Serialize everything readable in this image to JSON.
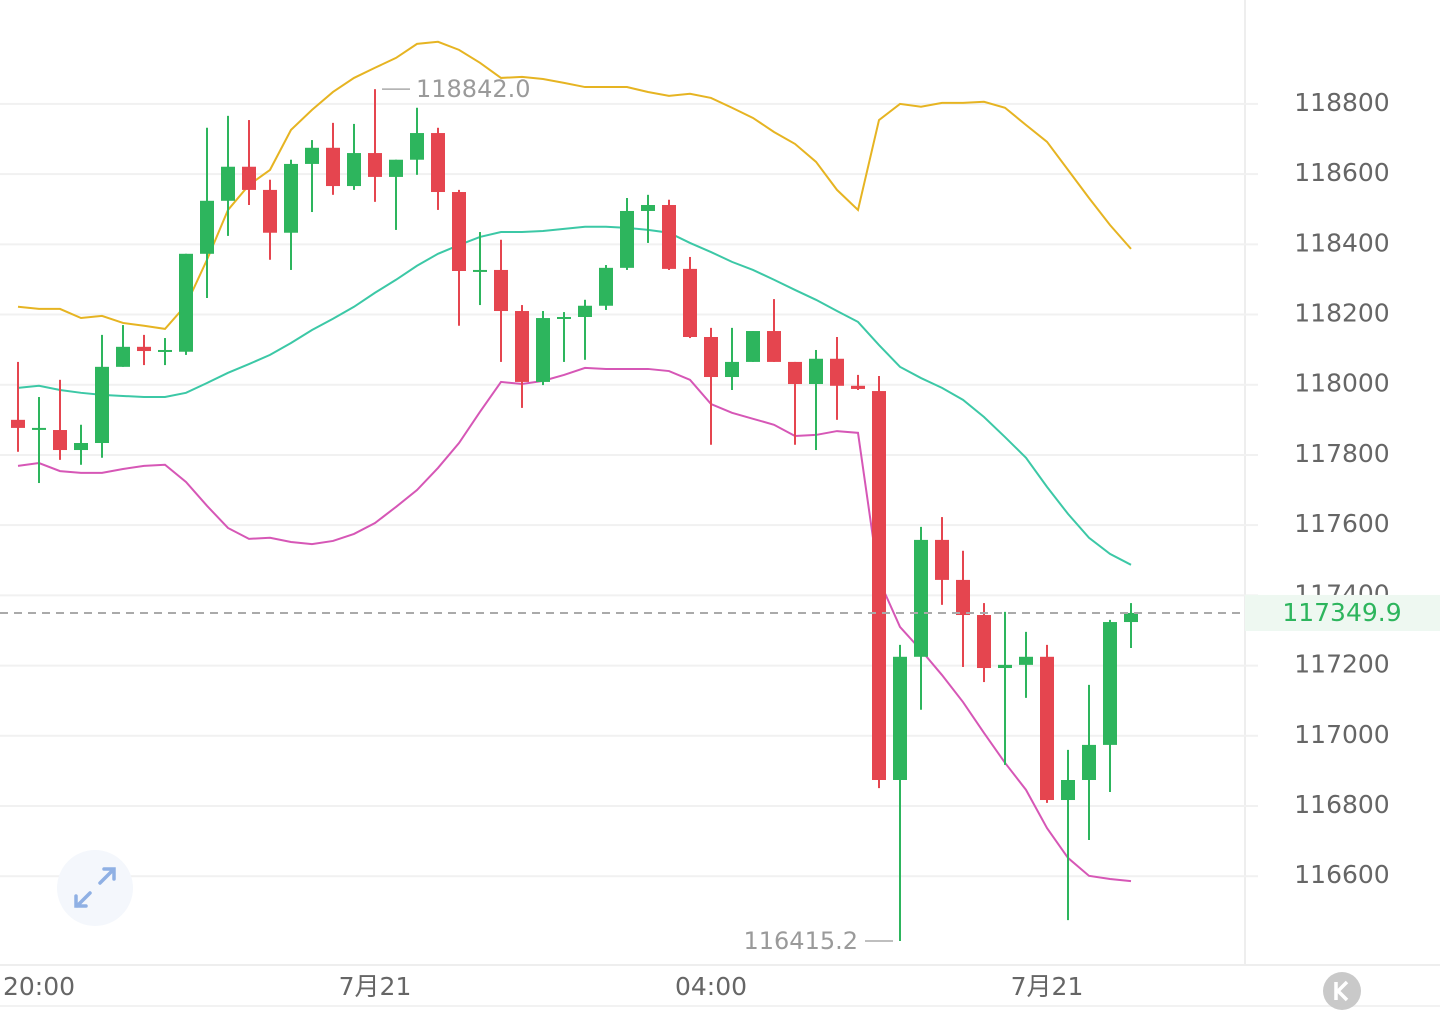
{
  "chart_data": {
    "type": "candlestick",
    "categories": [
      null,
      "20:00",
      null,
      null,
      null,
      null,
      null,
      null,
      null,
      null,
      null,
      null,
      null,
      null,
      null,
      null,
      null,
      "7月21",
      null,
      null,
      null,
      null,
      null,
      null,
      null,
      null,
      null,
      null,
      null,
      null,
      null,
      null,
      null,
      "04:00",
      null,
      null,
      null,
      null,
      null,
      null,
      null,
      null,
      null,
      null,
      null,
      null,
      null,
      null,
      null,
      "7月21",
      null,
      null,
      null,
      null
    ],
    "open": [
      117900,
      117877,
      117871,
      117814,
      117834,
      118051,
      118108,
      118099,
      118094,
      118373,
      118524,
      118621,
      118555,
      118433,
      118629,
      118675,
      118566,
      118660,
      118592,
      118641,
      118717,
      118549,
      118327,
      118327,
      118210,
      118008,
      118193,
      118193,
      118225,
      118333,
      118495,
      118512,
      118330,
      118136,
      118022,
      118065,
      118153,
      118065,
      118002,
      118074,
      117997,
      117982,
      116874,
      117225,
      117558,
      117444,
      117344,
      117193,
      117202,
      117225,
      116817,
      116874,
      116974,
      117324
    ],
    "high": [
      118065,
      117965,
      118014,
      117886,
      118142,
      118170,
      118142,
      118133,
      118373,
      118732,
      118766,
      118754,
      118584,
      118641,
      118697,
      118746,
      118743,
      118842.0,
      118641,
      118789,
      118732,
      118555,
      118435,
      118413,
      118227,
      118210,
      118207,
      118242,
      118341,
      118532,
      118541,
      118527,
      118364,
      118162,
      118162,
      118153,
      118244,
      118065,
      118099,
      118136,
      118028,
      118025,
      117259,
      117595,
      117623,
      117527,
      117378,
      117353,
      117296,
      117259,
      116960,
      117145,
      117330,
      117378
    ],
    "low": [
      117809,
      117720,
      117786,
      117772,
      117792,
      118051,
      118056,
      118056,
      118085,
      118247,
      118424,
      118512,
      118356,
      118327,
      118492,
      118541,
      118555,
      118521,
      118441,
      118598,
      118498,
      118168,
      118227,
      118065,
      117934,
      117999,
      118065,
      118071,
      118213,
      118327,
      118404,
      118327,
      118133,
      117829,
      117985,
      118065,
      118065,
      117829,
      117814,
      117900,
      117985,
      116851,
      116415.2,
      117074,
      117373,
      117196,
      117153,
      116917,
      117108,
      116809,
      116475,
      116703,
      116840,
      117250
    ],
    "close": [
      117877,
      117877,
      117814,
      117834,
      118051,
      118108,
      118096,
      118099,
      118373,
      118524,
      118621,
      118555,
      118433,
      118629,
      118675,
      118566,
      118660,
      118592,
      118641,
      118717,
      118549,
      118324,
      118327,
      118210,
      118008,
      118190,
      118193,
      118225,
      118333,
      118495,
      118512,
      118330,
      118136,
      118022,
      118065,
      118153,
      118065,
      118002,
      118074,
      117997,
      117988,
      116874,
      117225,
      117558,
      117444,
      117344,
      117193,
      117202,
      117225,
      116817,
      116874,
      116974,
      117324,
      117349.9
    ],
    "up_color": "#2db55d",
    "down_color": "#e5454f",
    "lines": [
      {
        "color": "#e6b422",
        "values": [
          118222,
          118216,
          118216,
          118190,
          118196,
          118176,
          118168,
          118159,
          118227,
          118356,
          118498,
          118569,
          118612,
          118726,
          118783,
          118834,
          118874,
          118903,
          118931,
          118971,
          118977,
          118954,
          118917,
          118874,
          118877,
          118871,
          118860,
          118848,
          118848,
          118848,
          118834,
          118823,
          118829,
          118817,
          118789,
          118760,
          118720,
          118686,
          118635,
          118555,
          118498,
          118754,
          118800,
          118792,
          118803,
          118803,
          118806,
          118789,
          118740,
          118692,
          118612,
          118532,
          118455,
          118387
        ]
      },
      {
        "color": "#3cc8a6",
        "values": [
          117991,
          117997,
          117985,
          117977,
          117971,
          117968,
          117965,
          117965,
          117977,
          118005,
          118034,
          118059,
          118085,
          118119,
          118156,
          118188,
          118222,
          118262,
          118299,
          118339,
          118373,
          118398,
          118421,
          118435,
          118435,
          118438,
          118444,
          118450,
          118450,
          118447,
          118441,
          118433,
          118404,
          118378,
          118350,
          118327,
          118299,
          118270,
          118242,
          118210,
          118179,
          118113,
          118051,
          118019,
          117991,
          117957,
          117908,
          117851,
          117792,
          117709,
          117632,
          117564,
          117518,
          117487
        ]
      },
      {
        "color": "#d657b6",
        "values": [
          117769,
          117777,
          117754,
          117749,
          117749,
          117760,
          117769,
          117772,
          117723,
          117655,
          117592,
          117561,
          117564,
          117552,
          117546,
          117555,
          117575,
          117606,
          117652,
          117700,
          117763,
          117834,
          117923,
          118008,
          118002,
          118011,
          118028,
          118048,
          118045,
          118045,
          118045,
          118039,
          118014,
          117945,
          117920,
          117903,
          117886,
          117854,
          117857,
          117868,
          117863,
          117444,
          117310,
          117244,
          117173,
          117096,
          117008,
          116923,
          116846,
          116737,
          116652,
          116601,
          116592,
          116586
        ]
      }
    ],
    "annotations": [
      {
        "value": 118842.0,
        "label": "118842.0"
      },
      {
        "value": 116415.2,
        "label": "116415.2"
      }
    ],
    "ylim": [
      116347,
      119096
    ],
    "yticks": [
      116600,
      116800,
      117000,
      117200,
      117400,
      117600,
      117800,
      118000,
      118200,
      118400,
      118600,
      118800
    ],
    "grid": true,
    "y_axis_side": "right"
  }
}
